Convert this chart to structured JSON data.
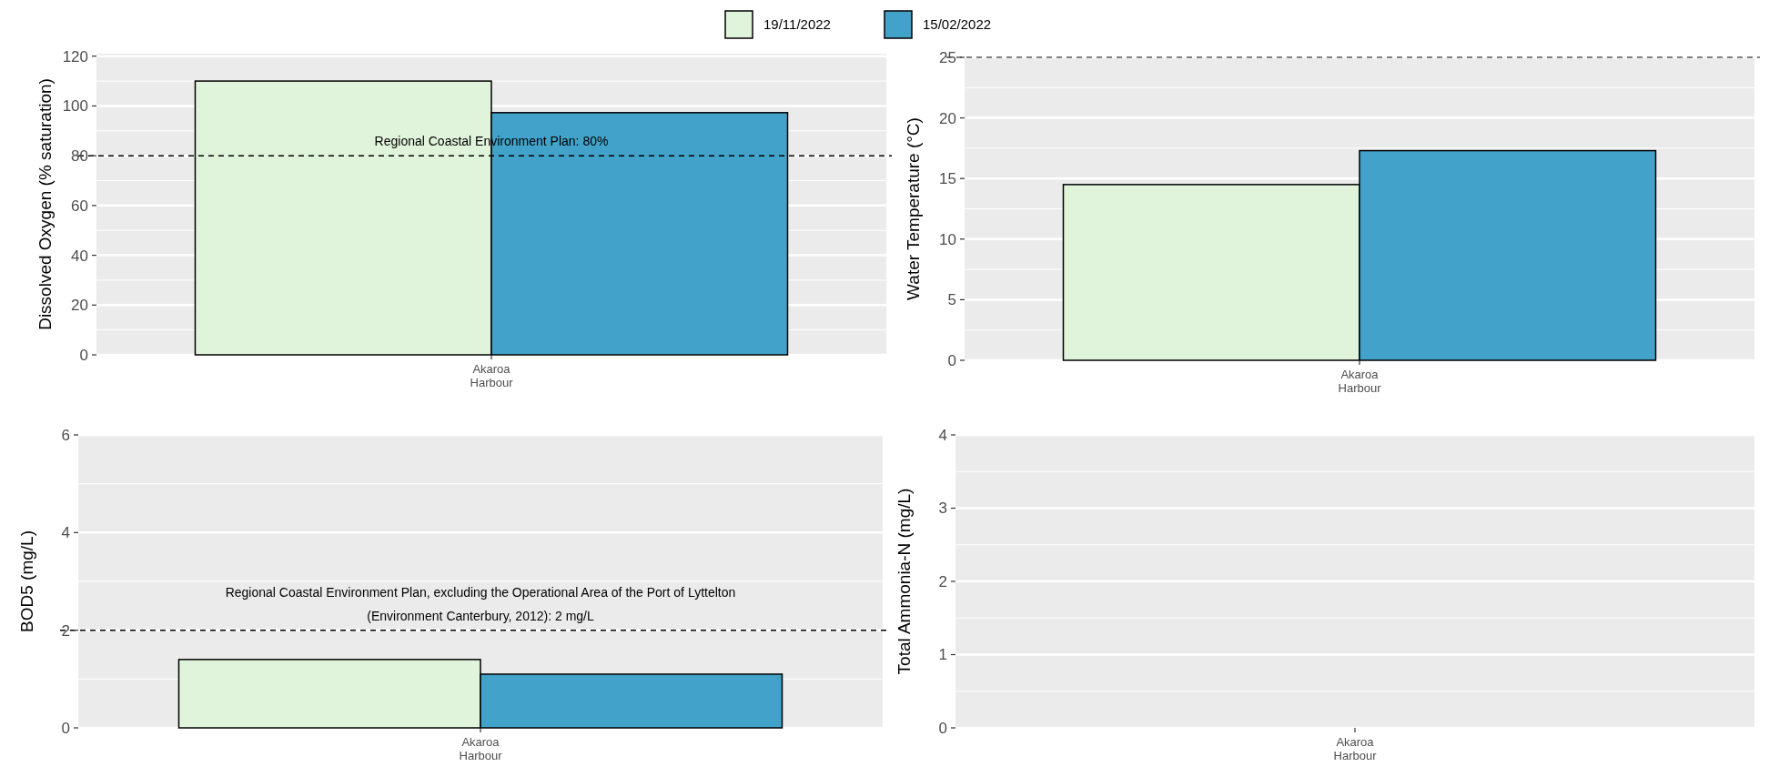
{
  "chart_data": [
    {
      "type": "bar",
      "ylabel": "Dissolved Oxygen (% saturation)",
      "categories": [
        "Akaroa\nHarbour"
      ],
      "series": [
        {
          "name": "19/11/2022",
          "color": "#e0f3db",
          "values": [
            110
          ]
        },
        {
          "name": "15/02/2022",
          "color": "#43a2ca",
          "values": [
            97.3
          ]
        }
      ],
      "ylim": [
        0,
        121
      ],
      "yticks": [
        0,
        20,
        40,
        60,
        80,
        100,
        120
      ],
      "grid": true,
      "legend": "top",
      "ref_lines": [
        {
          "axis": "y",
          "value": 80,
          "label": "Regional Coastal Environment Plan: 80%",
          "color": "#000000",
          "line_style": "dashed"
        }
      ]
    },
    {
      "type": "bar",
      "ylabel": "Water Temperature (°C)",
      "categories": [
        "Akaroa\nHarbour"
      ],
      "series": [
        {
          "color": "#e0f3db",
          "values": [
            14.5
          ]
        },
        {
          "color": "#43a2ca",
          "values": [
            17.3
          ]
        }
      ],
      "ylim": [
        0,
        25
      ],
      "yticks": [
        0,
        5,
        10,
        15,
        20,
        25
      ],
      "grid": true,
      "ref_lines": [
        {
          "axis": "y",
          "value": 25,
          "label": null,
          "color": "#555555",
          "line_style": "dashed"
        }
      ]
    },
    {
      "type": "bar",
      "ylabel": "BOD5 (mg/L)",
      "categories": [
        "Akaroa\nHarbour"
      ],
      "series": [
        {
          "color": "#e0f3db",
          "values": [
            1.4
          ]
        },
        {
          "color": "#43a2ca",
          "values": [
            1.1
          ]
        }
      ],
      "ylim": [
        0,
        6
      ],
      "yticks": [
        0,
        2,
        4,
        6
      ],
      "grid": true,
      "ref_lines": [
        {
          "axis": "y",
          "value": 2,
          "label": "Regional Coastal Environment Plan, excluding the Operational Area of the Port of Lyttelton\n(Environment Canterbury, 2012): 2 mg/L",
          "color": "#000000",
          "line_style": "dashed"
        }
      ]
    },
    {
      "type": "bar",
      "ylabel": "Total Ammonia-N (mg/L)",
      "categories": [
        "Akaroa\nHarbour"
      ],
      "series": [
        {
          "color": "#e0f3db",
          "values": [
            0
          ]
        },
        {
          "color": "#43a2ca",
          "values": [
            0
          ]
        }
      ],
      "ylim": [
        0,
        4
      ],
      "yticks": [
        0,
        1,
        2,
        3,
        4
      ],
      "grid": true
    }
  ]
}
